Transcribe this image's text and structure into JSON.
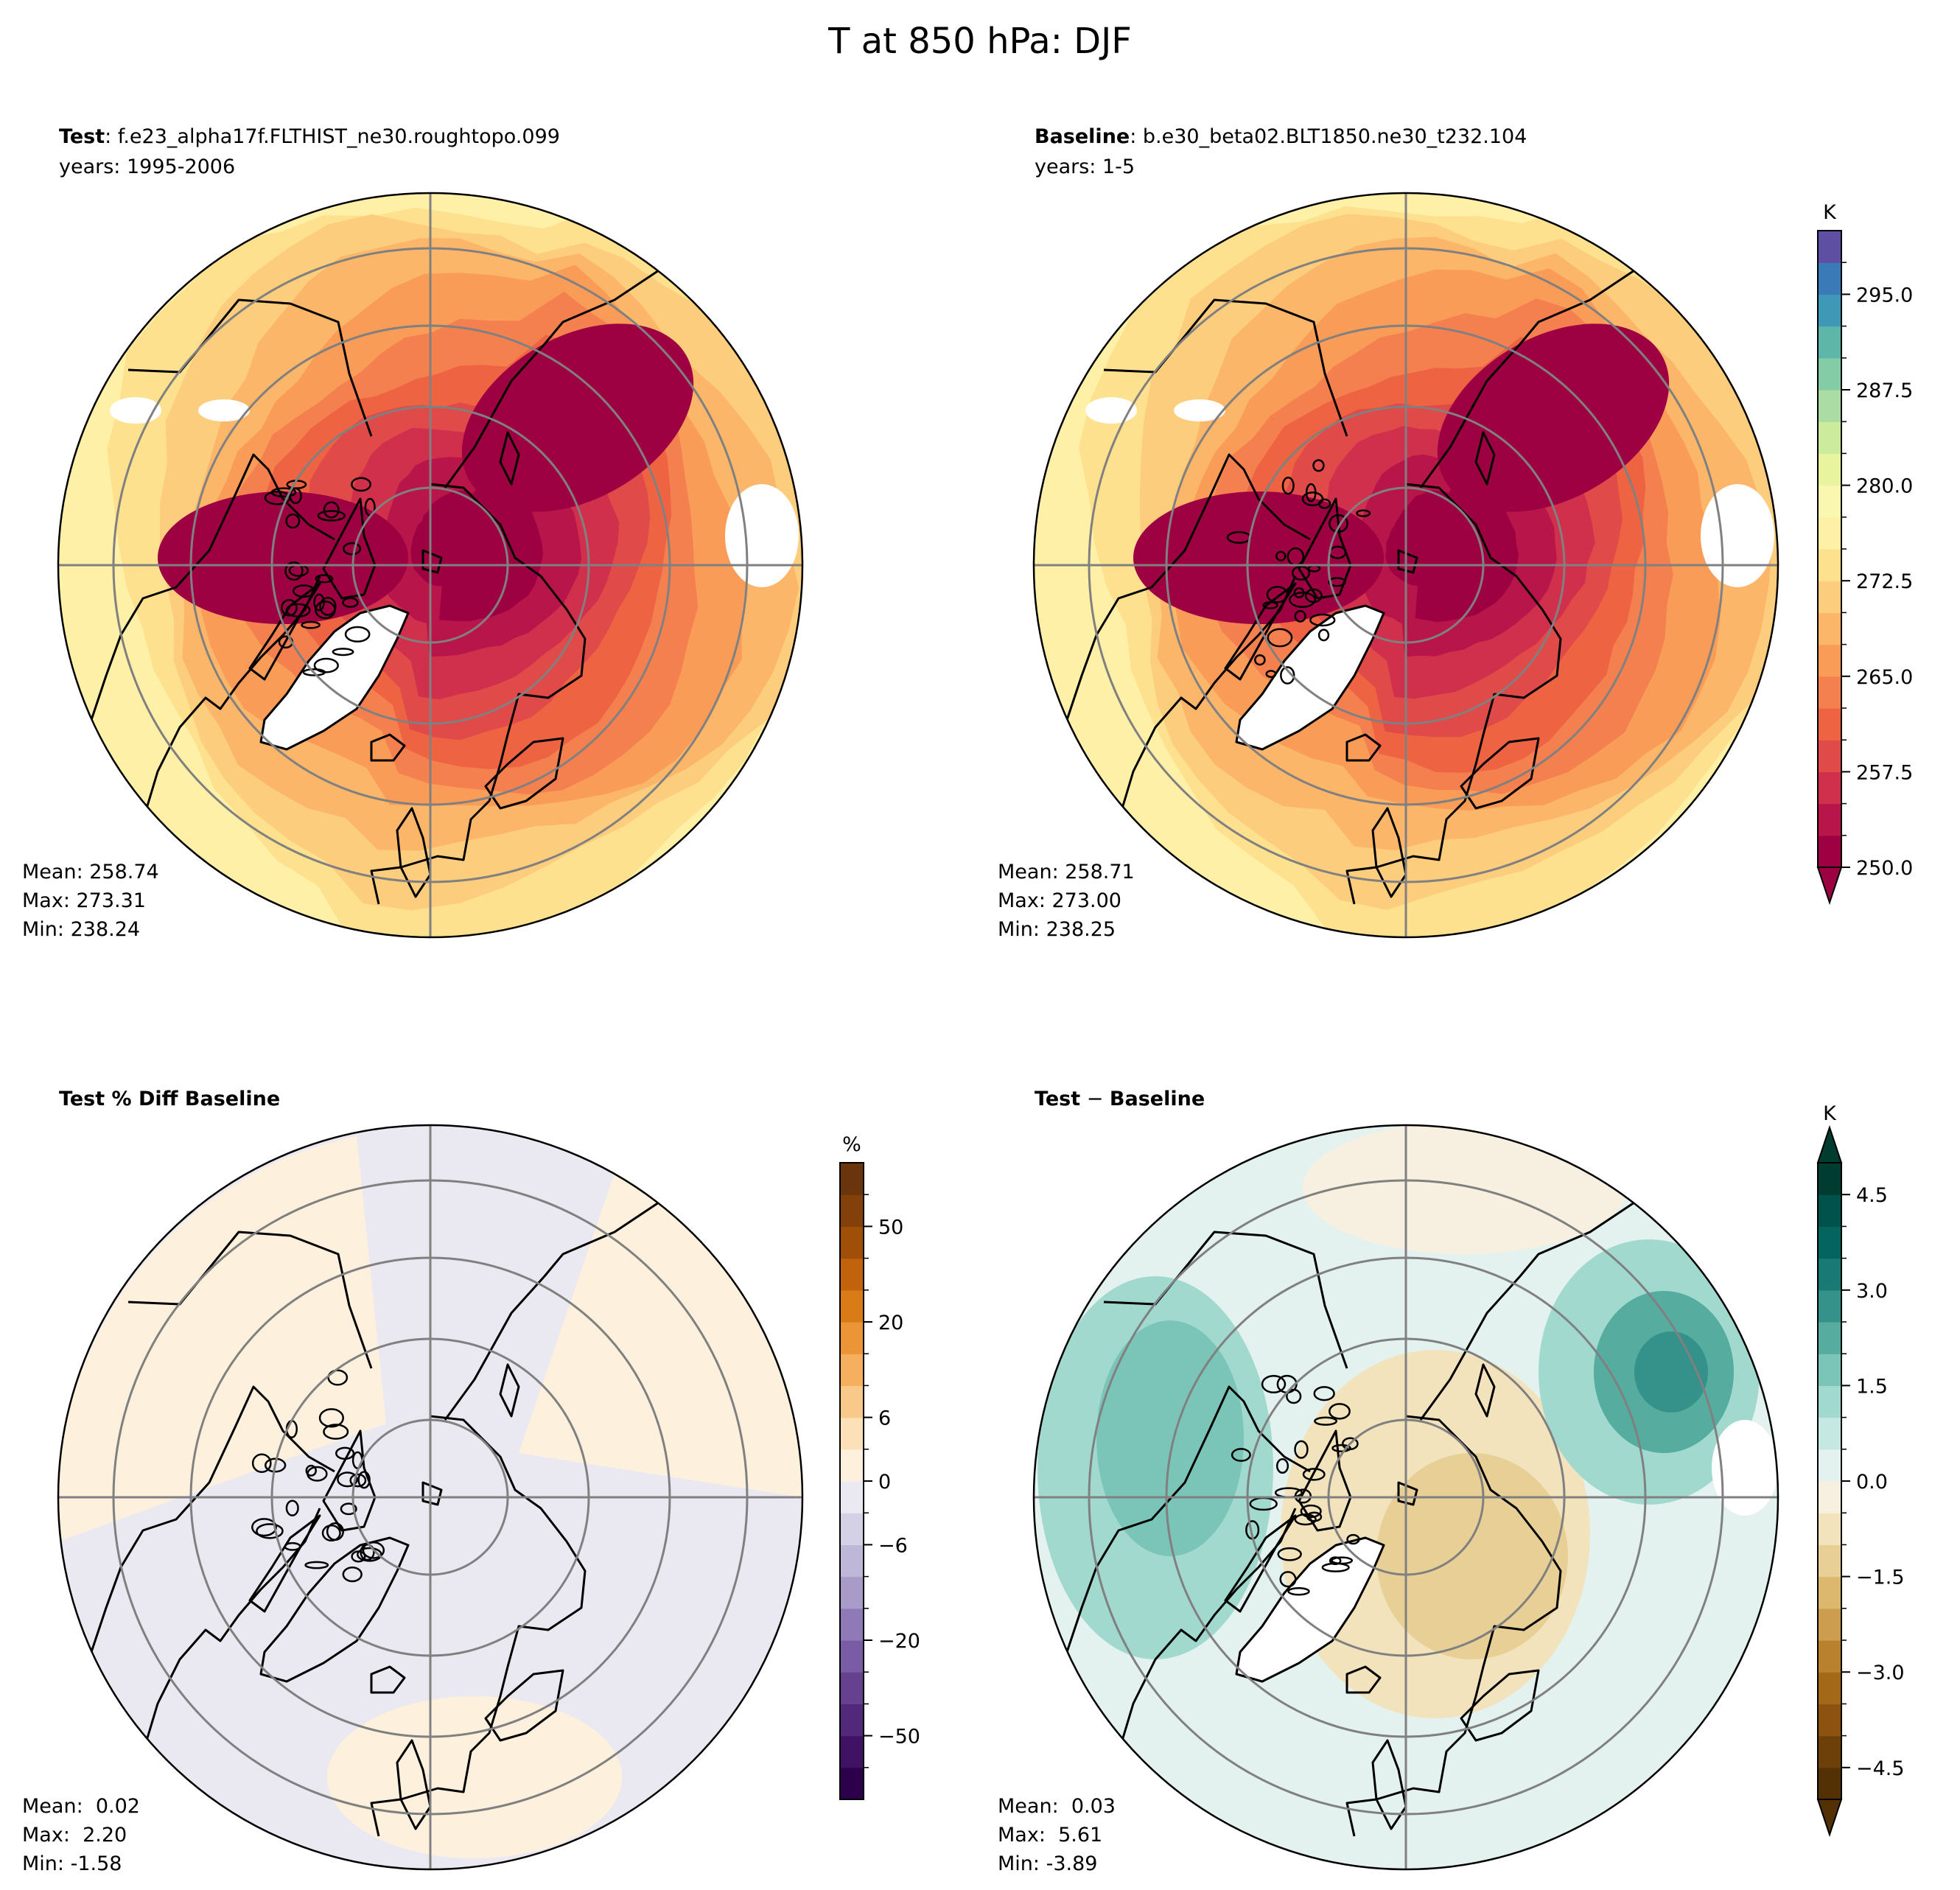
{
  "figure": {
    "title": "T at 850 hPa: DJF"
  },
  "chart_data": [
    {
      "type": "heatmap",
      "projection": "north-polar-stereographic",
      "panel": "test",
      "title_bold": "Test",
      "title_rest": ": f.e23_alpha17f.FLTHIST_ne30.roughtopo.099",
      "subtitle": "years: 1995-2006",
      "units": "K",
      "stats": {
        "mean": "Mean: 258.74",
        "max": "Max: 273.31",
        "min": "Min: 238.24"
      },
      "colormap": "Spectral",
      "range": [
        250.0,
        300.0
      ]
    },
    {
      "type": "heatmap",
      "projection": "north-polar-stereographic",
      "panel": "baseline",
      "title_bold": "Baseline",
      "title_rest": ": b.e30_beta02.BLT1850.ne30_t232.104",
      "subtitle": "years: 1-5",
      "units": "K",
      "stats": {
        "mean": "Mean: 258.71",
        "max": "Max: 273.00",
        "min": "Min: 238.25"
      },
      "colormap": "Spectral",
      "colorbar": {
        "label": "K",
        "ticks": [
          "250.0",
          "257.5",
          "265.0",
          "272.5",
          "280.0",
          "287.5",
          "295.0"
        ],
        "tick_values": [
          250.0,
          257.5,
          265.0,
          272.5,
          280.0,
          287.5,
          295.0
        ],
        "range": [
          250.0,
          300.0
        ],
        "extend": "min",
        "levels": 20
      }
    },
    {
      "type": "heatmap",
      "projection": "north-polar-stereographic",
      "panel": "pct-diff",
      "title_bold": "Test % Diff Baseline",
      "title_rest": "",
      "units": "%",
      "stats": {
        "mean": "Mean:  0.02",
        "max": "Max:  2.20",
        "min": "Min: -1.58"
      },
      "colormap": "PuOr_r",
      "colorbar": {
        "label": "%",
        "ticks": [
          "50",
          "20",
          "6",
          "0",
          "−6",
          "−20",
          "−50"
        ],
        "tick_values": [
          50,
          20,
          6,
          0,
          -6,
          -20,
          -50
        ],
        "extend": "neither",
        "levels": 20
      }
    },
    {
      "type": "heatmap",
      "projection": "north-polar-stereographic",
      "panel": "diff",
      "title_bold": "Test",
      "title_op": " − ",
      "title_rest": "Baseline",
      "units": "K",
      "stats": {
        "mean": "Mean:  0.03",
        "max": "Max:  5.61",
        "min": "Min: -3.89"
      },
      "colormap": "BrBG",
      "colorbar": {
        "label": "K",
        "ticks": [
          "4.5",
          "3.0",
          "1.5",
          "0.0",
          "−1.5",
          "−3.0",
          "−4.5"
        ],
        "tick_values": [
          4.5,
          3.0,
          1.5,
          0.0,
          -1.5,
          -3.0,
          -4.5
        ],
        "range": [
          -5.0,
          5.0
        ],
        "extend": "both",
        "levels": 20
      }
    }
  ],
  "colors": {
    "spectral": [
      "#9e0142",
      "#b8164a",
      "#d0304b",
      "#e04b4a",
      "#ee6443",
      "#f4804f",
      "#f89c58",
      "#fbb66a",
      "#fdcd7e",
      "#fee18f",
      "#fff0a8",
      "#f9f7b0",
      "#e8f59e",
      "#cdeb9c",
      "#aadca4",
      "#84cca5",
      "#5db6a8",
      "#3f98b6",
      "#3a7bb7",
      "#5e4fa2"
    ],
    "puor": [
      "#2d004b",
      "#3f1263",
      "#51287a",
      "#654190",
      "#7a5ca6",
      "#9079b7",
      "#a89bc8",
      "#beb7d8",
      "#d4d0e6",
      "#eae8f1",
      "#fdf0dd",
      "#fbe0b8",
      "#f9c98b",
      "#f5af5e",
      "#eb9536",
      "#d97b17",
      "#c0630c",
      "#a04f08",
      "#83400a",
      "#6a340c"
    ],
    "brbg": [
      "#543005",
      "#6e4009",
      "#8c520f",
      "#a46819",
      "#b8812e",
      "#cc9d4f",
      "#dcb86e",
      "#e8cf95",
      "#f2e3bd",
      "#f7f0e0",
      "#e4f2ef",
      "#c5e8e2",
      "#a1d9cf",
      "#7ac5b8",
      "#55ac9f",
      "#35928a",
      "#187a73",
      "#04655e",
      "#01524a",
      "#003c30"
    ],
    "grid": "#808080",
    "coast": "#000000"
  }
}
